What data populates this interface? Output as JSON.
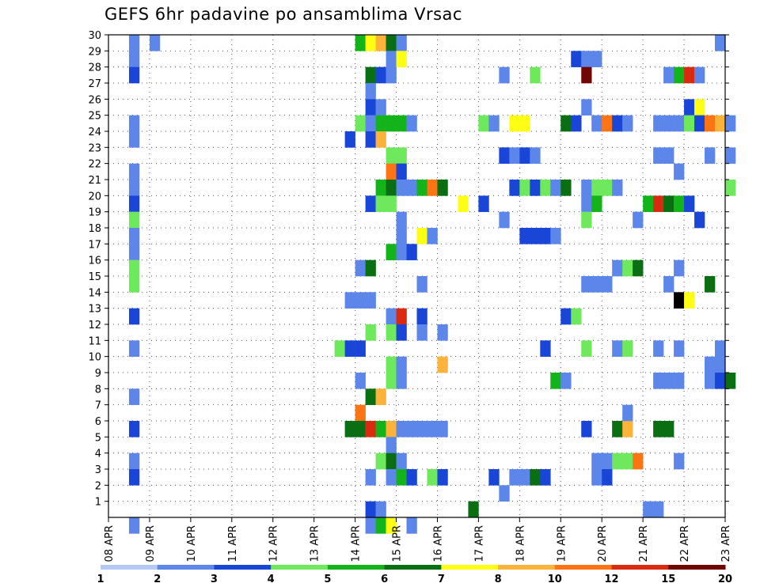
{
  "chart_data": {
    "type": "heatmap",
    "title": "GEFS 6hr padavine po ansamblima Vrsac",
    "x_tick_labels": [
      "08 APR",
      "09 APR",
      "10 APR",
      "11 APR",
      "12 APR",
      "13 APR",
      "14 APR",
      "15 APR",
      "16 APR",
      "17 APR",
      "18 APR",
      "19 APR",
      "20 APR",
      "21 APR",
      "22 APR",
      "23 APR"
    ],
    "x_start": "2020-04-08 00:00",
    "x_end": "2020-04-23 00:00",
    "x_step": "6 hours",
    "y_tick_labels": [
      "1",
      "2",
      "3",
      "4",
      "5",
      "6",
      "7",
      "8",
      "9",
      "10",
      "11",
      "12",
      "13",
      "14",
      "15",
      "16",
      "17",
      "18",
      "19",
      "20",
      "21",
      "22",
      "23",
      "24",
      "25",
      "26",
      "27",
      "28",
      "29",
      "30"
    ],
    "ylim": [
      0,
      30
    ],
    "grid": true,
    "colorbar": {
      "labels": [
        "1",
        "2",
        "3",
        "4",
        "5",
        "6",
        "7",
        "8",
        "10",
        "12",
        "15",
        "20"
      ],
      "colors": [
        "#b5c9f6",
        "#5c86ea",
        "#1a46d8",
        "#6ee85c",
        "#12b41a",
        "#0a6e12",
        "#fefe14",
        "#fdb23a",
        "#fd7414",
        "#da2a10",
        "#700606"
      ]
    },
    "cells": [
      [
        0.5,
        30,
        1
      ],
      [
        1,
        30,
        1
      ],
      [
        0.5,
        29,
        1
      ],
      [
        0.5,
        28,
        2
      ],
      [
        0.5,
        25,
        1
      ],
      [
        0.5,
        24,
        1
      ],
      [
        0.5,
        22,
        1
      ],
      [
        0.5,
        21,
        1
      ],
      [
        0.5,
        20,
        2
      ],
      [
        0.5,
        19,
        3
      ],
      [
        0.5,
        18,
        1
      ],
      [
        0.5,
        17,
        1
      ],
      [
        0.5,
        16,
        3
      ],
      [
        0.5,
        15,
        3
      ],
      [
        0.5,
        13,
        2
      ],
      [
        0.5,
        11,
        1
      ],
      [
        0.5,
        8,
        1
      ],
      [
        0.5,
        6,
        2
      ],
      [
        0.5,
        4,
        1
      ],
      [
        0.5,
        3,
        2
      ],
      [
        0.5,
        0,
        1
      ],
      [
        5.5,
        11,
        3
      ],
      [
        5.75,
        24,
        2
      ],
      [
        5.75,
        14,
        1
      ],
      [
        5.75,
        11,
        2
      ],
      [
        5.75,
        6,
        5
      ],
      [
        6,
        30,
        4
      ],
      [
        6,
        25,
        3
      ],
      [
        6,
        16,
        1
      ],
      [
        6,
        14,
        1
      ],
      [
        6,
        11,
        2
      ],
      [
        6,
        9,
        1
      ],
      [
        6,
        7,
        8
      ],
      [
        6,
        6,
        5
      ],
      [
        6.25,
        30,
        6
      ],
      [
        6.25,
        28,
        5
      ],
      [
        6.25,
        27,
        1
      ],
      [
        6.25,
        26,
        2
      ],
      [
        6.25,
        25,
        1
      ],
      [
        6.25,
        24,
        2
      ],
      [
        6.25,
        20,
        2
      ],
      [
        6.25,
        16,
        5
      ],
      [
        6.25,
        14,
        1
      ],
      [
        6.25,
        12,
        3
      ],
      [
        6.25,
        8,
        5
      ],
      [
        6.25,
        6,
        9
      ],
      [
        6.25,
        3,
        1
      ],
      [
        6.25,
        1,
        2
      ],
      [
        6.25,
        0,
        1
      ],
      [
        6.5,
        30,
        7
      ],
      [
        6.5,
        28,
        2
      ],
      [
        6.5,
        26,
        1
      ],
      [
        6.5,
        25,
        4
      ],
      [
        6.5,
        24,
        7
      ],
      [
        6.5,
        21,
        4
      ],
      [
        6.5,
        20,
        3
      ],
      [
        6.5,
        8,
        7
      ],
      [
        6.5,
        6,
        4
      ],
      [
        6.5,
        4,
        3
      ],
      [
        6.5,
        1,
        1
      ],
      [
        6.5,
        0,
        4
      ],
      [
        6.75,
        30,
        5
      ],
      [
        6.75,
        29,
        1
      ],
      [
        6.75,
        28,
        1
      ],
      [
        6.75,
        25,
        4
      ],
      [
        6.75,
        23,
        3
      ],
      [
        6.75,
        22,
        8
      ],
      [
        6.75,
        21,
        5
      ],
      [
        6.75,
        20,
        3
      ],
      [
        6.75,
        17,
        4
      ],
      [
        6.75,
        13,
        1
      ],
      [
        6.75,
        12,
        3
      ],
      [
        6.75,
        10,
        3
      ],
      [
        6.75,
        9,
        3
      ],
      [
        6.75,
        6,
        7
      ],
      [
        6.75,
        5,
        1
      ],
      [
        6.75,
        4,
        5
      ],
      [
        6.75,
        3,
        1
      ],
      [
        6.75,
        0,
        6
      ],
      [
        7,
        30,
        1
      ],
      [
        7,
        29,
        6
      ],
      [
        7,
        25,
        4
      ],
      [
        7,
        23,
        3
      ],
      [
        7,
        22,
        2
      ],
      [
        7,
        21,
        1
      ],
      [
        7,
        19,
        1
      ],
      [
        7,
        18,
        1
      ],
      [
        7,
        17,
        1
      ],
      [
        7,
        13,
        9
      ],
      [
        7,
        12,
        2
      ],
      [
        7,
        10,
        1
      ],
      [
        7,
        9,
        1
      ],
      [
        7,
        6,
        1
      ],
      [
        7,
        4,
        1
      ],
      [
        7,
        3,
        4
      ],
      [
        7.25,
        25,
        1
      ],
      [
        7.25,
        21,
        1
      ],
      [
        7.25,
        17,
        2
      ],
      [
        7.25,
        6,
        1
      ],
      [
        7.25,
        3,
        2
      ],
      [
        7.25,
        0,
        1
      ],
      [
        7.5,
        21,
        4
      ],
      [
        7.5,
        18,
        6
      ],
      [
        7.5,
        15,
        1
      ],
      [
        7.5,
        13,
        2
      ],
      [
        7.5,
        12,
        1
      ],
      [
        7.5,
        6,
        1
      ],
      [
        7.75,
        21,
        8
      ],
      [
        7.75,
        18,
        1
      ],
      [
        7.75,
        6,
        1
      ],
      [
        7.75,
        3,
        3
      ],
      [
        8,
        21,
        5
      ],
      [
        8,
        12,
        1
      ],
      [
        8,
        6,
        1
      ],
      [
        8,
        3,
        2
      ],
      [
        8,
        10,
        7
      ],
      [
        8.5,
        20,
        6
      ],
      [
        8.75,
        1,
        5
      ],
      [
        9,
        25,
        3
      ],
      [
        9,
        20,
        2
      ],
      [
        9.25,
        25,
        1
      ],
      [
        9.25,
        3,
        2
      ],
      [
        9.5,
        28,
        1
      ],
      [
        9.5,
        23,
        2
      ],
      [
        9.5,
        19,
        1
      ],
      [
        9.5,
        2,
        1
      ],
      [
        9.75,
        25,
        6
      ],
      [
        9.75,
        23,
        1
      ],
      [
        9.75,
        21,
        2
      ],
      [
        9.75,
        3,
        1
      ],
      [
        10,
        25,
        6
      ],
      [
        10,
        23,
        2
      ],
      [
        10,
        21,
        3
      ],
      [
        10,
        18,
        2
      ],
      [
        10,
        3,
        1
      ],
      [
        10.25,
        28,
        3
      ],
      [
        10.25,
        23,
        1
      ],
      [
        10.25,
        21,
        2
      ],
      [
        10.25,
        18,
        2
      ],
      [
        10.25,
        3,
        5
      ],
      [
        10.5,
        21,
        3
      ],
      [
        10.5,
        18,
        2
      ],
      [
        10.5,
        11,
        2
      ],
      [
        10.5,
        3,
        2
      ],
      [
        10.75,
        21,
        1
      ],
      [
        10.75,
        18,
        1
      ],
      [
        10.75,
        9,
        4
      ],
      [
        11,
        25,
        5
      ],
      [
        11,
        21,
        5
      ],
      [
        11,
        13,
        2
      ],
      [
        11,
        9,
        1
      ],
      [
        11.25,
        29,
        2
      ],
      [
        11.25,
        25,
        2
      ],
      [
        11.25,
        13,
        3
      ],
      [
        11.5,
        29,
        1
      ],
      [
        11.5,
        28,
        10
      ],
      [
        11.5,
        26,
        1
      ],
      [
        11.5,
        21,
        1
      ],
      [
        11.5,
        20,
        1
      ],
      [
        11.5,
        19,
        3
      ],
      [
        11.5,
        15,
        1
      ],
      [
        11.5,
        11,
        3
      ],
      [
        11.5,
        6,
        2
      ],
      [
        11.75,
        29,
        1
      ],
      [
        11.75,
        25,
        1
      ],
      [
        11.75,
        21,
        3
      ],
      [
        11.75,
        20,
        4
      ],
      [
        11.75,
        15,
        1
      ],
      [
        11.75,
        4,
        1
      ],
      [
        11.75,
        3,
        1
      ],
      [
        12,
        25,
        8
      ],
      [
        12,
        21,
        3
      ],
      [
        12,
        15,
        1
      ],
      [
        12,
        4,
        1
      ],
      [
        12,
        3,
        2
      ],
      [
        12.25,
        25,
        2
      ],
      [
        12.25,
        21,
        1
      ],
      [
        12.25,
        16,
        1
      ],
      [
        12.25,
        11,
        1
      ],
      [
        12.25,
        6,
        5
      ],
      [
        12.25,
        4,
        3
      ],
      [
        12.5,
        25,
        1
      ],
      [
        12.5,
        16,
        3
      ],
      [
        12.5,
        11,
        3
      ],
      [
        12.5,
        6,
        7
      ],
      [
        12.5,
        4,
        3
      ],
      [
        12.5,
        7,
        1
      ],
      [
        12.75,
        16,
        5
      ],
      [
        12.75,
        4,
        8
      ],
      [
        12.75,
        19,
        1
      ],
      [
        13,
        20,
        4
      ],
      [
        13,
        1,
        1
      ],
      [
        13.25,
        25,
        1
      ],
      [
        13.25,
        23,
        1
      ],
      [
        13.25,
        20,
        9
      ],
      [
        13.25,
        11,
        1
      ],
      [
        13.25,
        9,
        1
      ],
      [
        13.25,
        6,
        5
      ],
      [
        13.25,
        1,
        1
      ],
      [
        13.5,
        28,
        1
      ],
      [
        13.5,
        25,
        1
      ],
      [
        13.5,
        23,
        1
      ],
      [
        13.5,
        20,
        5
      ],
      [
        13.5,
        15,
        1
      ],
      [
        13.5,
        9,
        1
      ],
      [
        13.5,
        6,
        5
      ],
      [
        13.75,
        28,
        4
      ],
      [
        13.75,
        25,
        1
      ],
      [
        13.75,
        22,
        1
      ],
      [
        13.75,
        20,
        4
      ],
      [
        13.75,
        16,
        1
      ],
      [
        13.75,
        14,
        11
      ],
      [
        13.75,
        11,
        1
      ],
      [
        13.75,
        9,
        1
      ],
      [
        13.75,
        4,
        1
      ],
      [
        14,
        28,
        9
      ],
      [
        14,
        26,
        2
      ],
      [
        14,
        25,
        3
      ],
      [
        14,
        20,
        2
      ],
      [
        14,
        14,
        6
      ],
      [
        14.25,
        28,
        1
      ],
      [
        14.25,
        26,
        6
      ],
      [
        14.25,
        25,
        2
      ],
      [
        14.25,
        19,
        2
      ],
      [
        14.5,
        25,
        8
      ],
      [
        14.5,
        23,
        1
      ],
      [
        14.5,
        15,
        5
      ],
      [
        14.5,
        10,
        1
      ],
      [
        14.5,
        9,
        1
      ],
      [
        14.75,
        30,
        1
      ],
      [
        14.75,
        25,
        7
      ],
      [
        14.75,
        11,
        1
      ],
      [
        14.75,
        10,
        1
      ],
      [
        14.75,
        9,
        2
      ],
      [
        15,
        25,
        1
      ],
      [
        15,
        23,
        1
      ],
      [
        15,
        21,
        3
      ],
      [
        15,
        9,
        5
      ]
    ]
  }
}
